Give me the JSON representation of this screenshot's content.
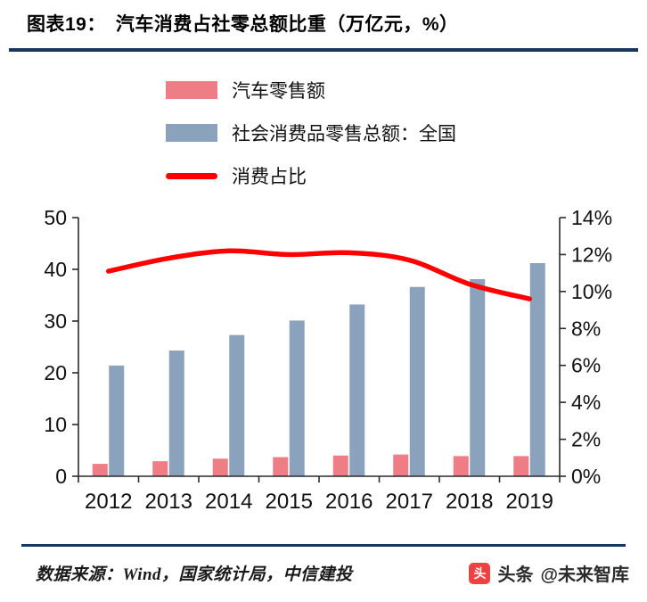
{
  "header": {
    "title": "图表19：　汽车消费占社零总额比重（万亿元，%）"
  },
  "legend": {
    "items": [
      {
        "label": "汽车零售额",
        "swatch": "rect",
        "color": "#ee7d86"
      },
      {
        "label": "社会消费品零售总额：全国",
        "swatch": "rect",
        "color": "#8ba2bc"
      },
      {
        "label": "消费占比",
        "swatch": "line",
        "color": "#fe0000"
      }
    ]
  },
  "chart_data": {
    "type": "bar+line",
    "title": "汽车消费占社零总额比重（万亿元，%）",
    "categories": [
      "2012",
      "2013",
      "2014",
      "2015",
      "2016",
      "2017",
      "2018",
      "2019"
    ],
    "series": [
      {
        "name": "汽车零售额",
        "type": "bar",
        "axis": "left",
        "color": "#ee7d86",
        "values": [
          2.4,
          2.9,
          3.4,
          3.7,
          4.0,
          4.2,
          3.9,
          3.9
        ]
      },
      {
        "name": "社会消费品零售总额：全国",
        "type": "bar",
        "axis": "left",
        "color": "#8ba2bc",
        "values": [
          21.4,
          24.3,
          27.3,
          30.1,
          33.2,
          36.6,
          38.1,
          41.2
        ]
      },
      {
        "name": "消费占比",
        "type": "line",
        "axis": "right",
        "color": "#fe0000",
        "values": [
          11.1,
          11.8,
          12.2,
          12.0,
          12.1,
          11.7,
          10.4,
          9.6
        ]
      }
    ],
    "left_axis": {
      "min": 0,
      "max": 50,
      "step": 10,
      "labels": [
        "0",
        "10",
        "20",
        "30",
        "40",
        "50"
      ]
    },
    "right_axis": {
      "min": 0,
      "max": 14,
      "step": 2,
      "labels": [
        "0%",
        "2%",
        "4%",
        "6%",
        "8%",
        "10%",
        "12%",
        "14%"
      ]
    },
    "grid": false,
    "legend_position": "top-left"
  },
  "footer": {
    "source": "数据来源：Wind，国家统计局，中信建投",
    "watermark_brand": "头条",
    "watermark_handle": "@未来智库"
  },
  "colors": {
    "rule": "#17375e",
    "axis": "#2b2b2b",
    "tick_text": "#111111"
  }
}
